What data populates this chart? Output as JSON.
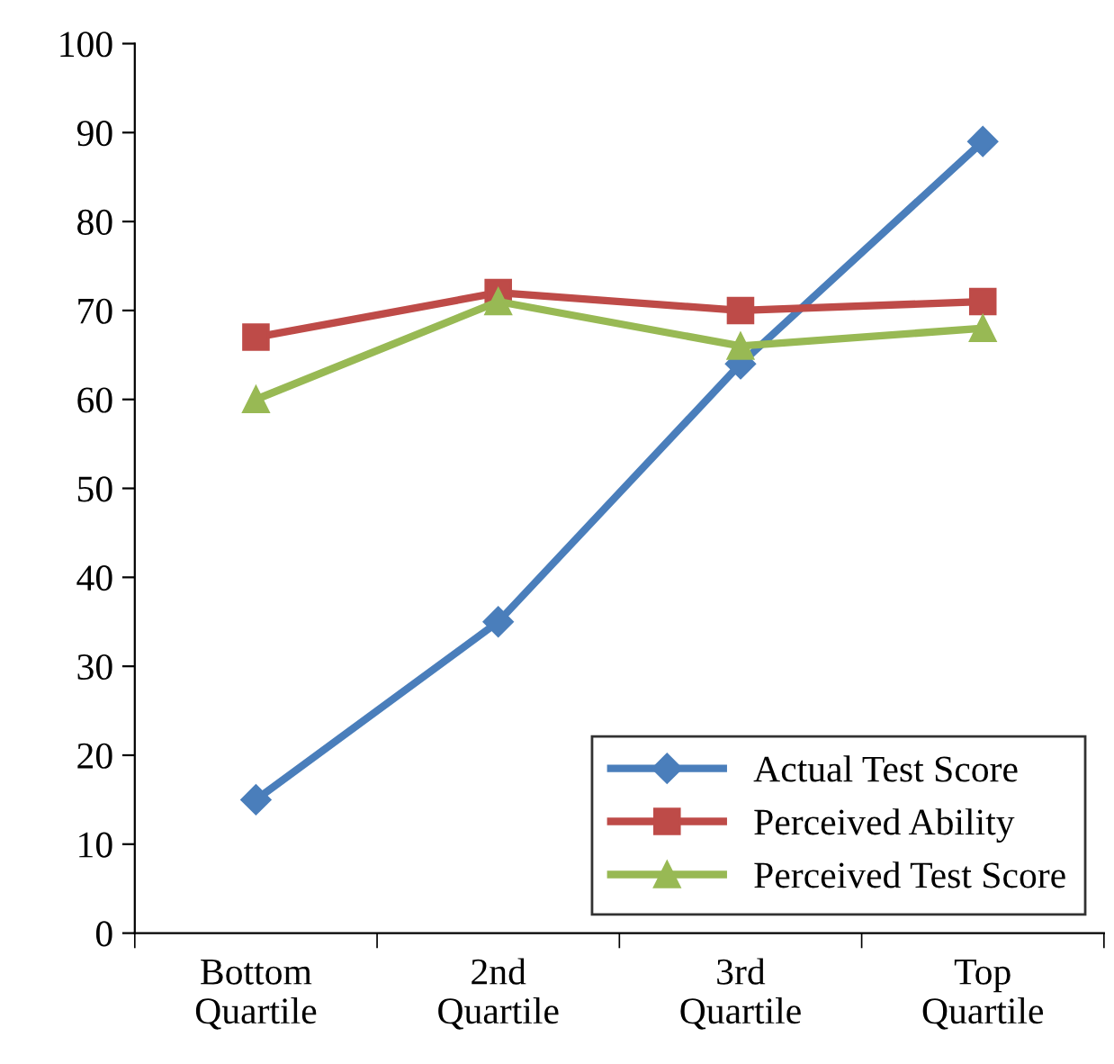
{
  "chart_data": {
    "type": "line",
    "categories": [
      "Bottom\nQuartile",
      "2nd\nQuartile",
      "3rd\nQuartile",
      "Top\nQuartile"
    ],
    "series": [
      {
        "name": "Actual Test Score",
        "color": "#4a7ebb",
        "marker": "diamond",
        "values": [
          15,
          35,
          64,
          89
        ]
      },
      {
        "name": "Perceived Ability",
        "color": "#be4b48",
        "marker": "square",
        "values": [
          67,
          72,
          70,
          71
        ]
      },
      {
        "name": "Perceived Test Score",
        "color": "#98b954",
        "marker": "triangle",
        "values": [
          60,
          71,
          66,
          68
        ]
      }
    ],
    "ylim": [
      0,
      100
    ],
    "yticks": [
      0,
      10,
      20,
      30,
      40,
      50,
      60,
      70,
      80,
      90,
      100
    ],
    "grid": false,
    "legend": "bottom right",
    "line_style": "solid"
  }
}
